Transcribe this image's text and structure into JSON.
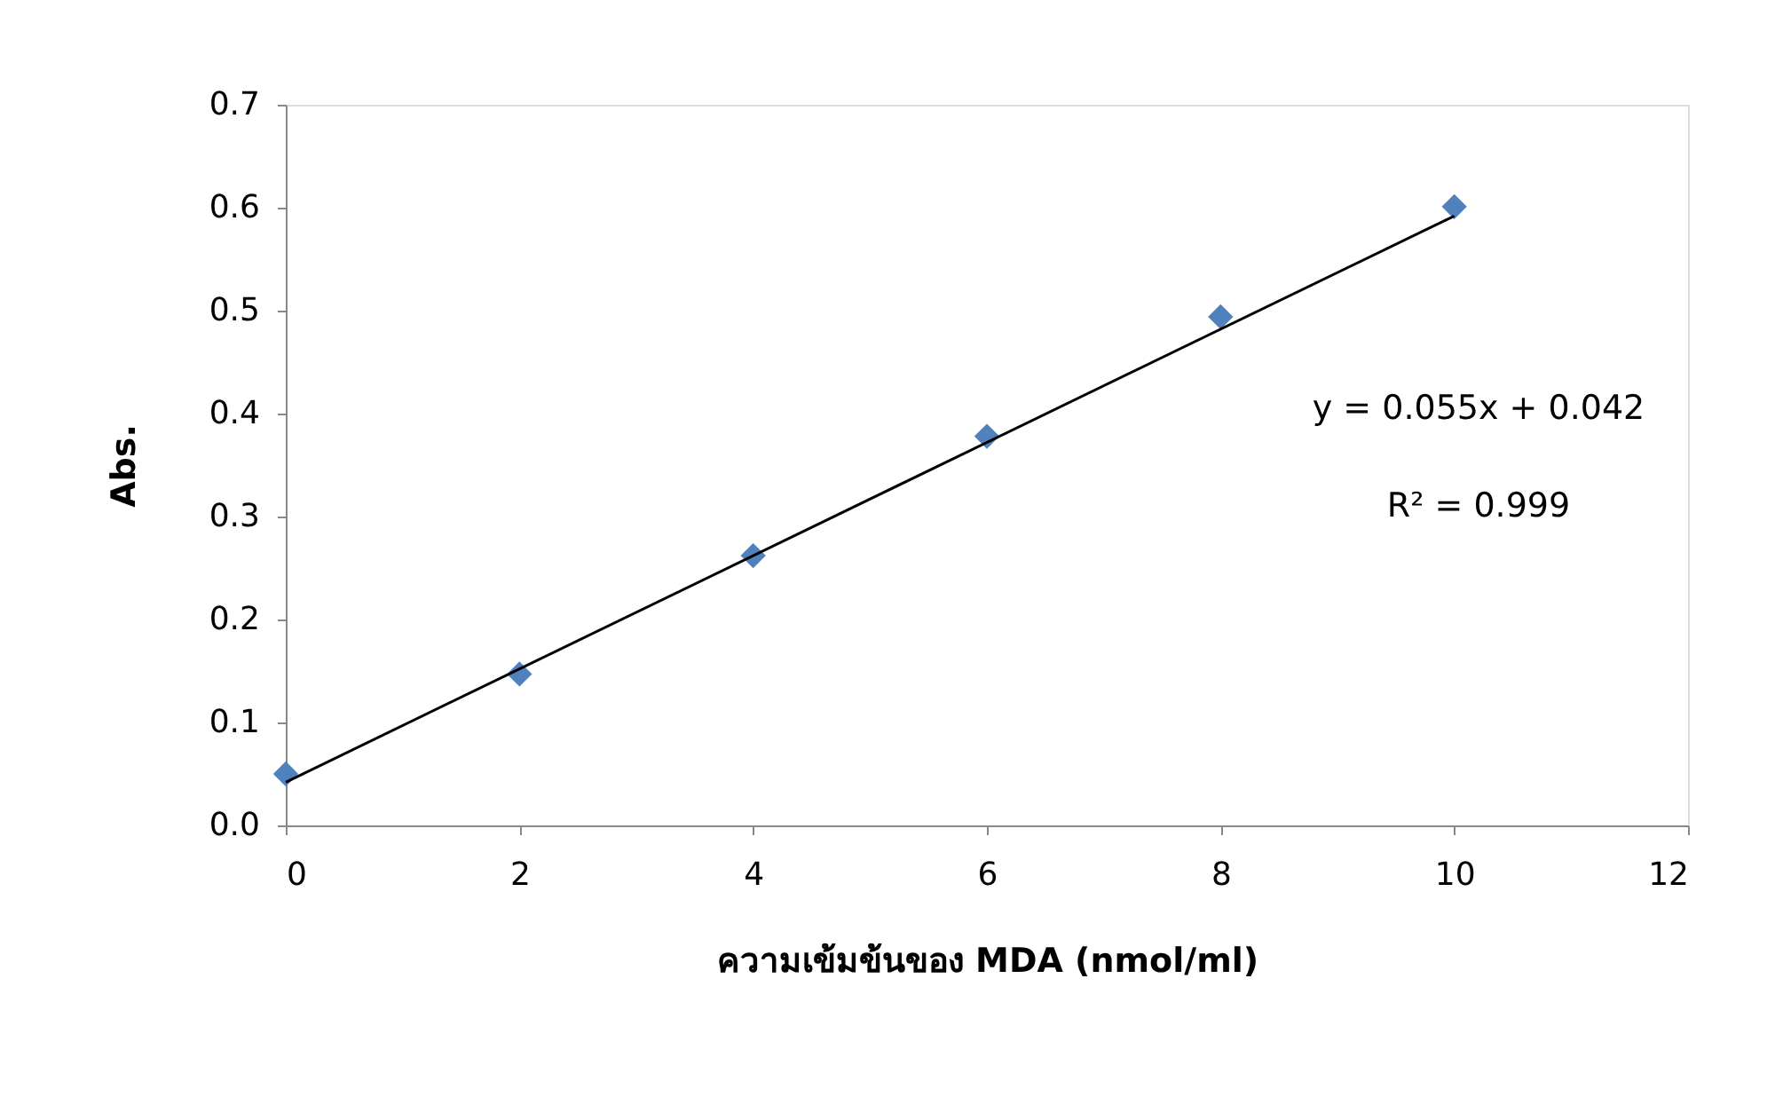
{
  "chart_data": {
    "type": "scatter",
    "xlabel": "ความเข้มข้นของ MDA (nmol/ml)",
    "ylabel": "Abs.",
    "xlim": [
      0,
      12
    ],
    "xticks": [
      0,
      2,
      4,
      6,
      8,
      10,
      12
    ],
    "ylim": [
      0,
      0.7
    ],
    "yticks": [
      {
        "value": 0,
        "label": "0.0"
      },
      0.1,
      0.2,
      0.3,
      0.4,
      0.5,
      0.6,
      0.7
    ],
    "grid": false,
    "marker": "diamond",
    "series": [
      {
        "color": "#4f81bd",
        "x": [
          0,
          2,
          4,
          6,
          8,
          10
        ],
        "values": [
          0.05,
          0.147,
          0.262,
          0.378,
          0.494,
          0.601
        ]
      },
      {
        "type": "line",
        "color": "#000000",
        "marker": "none",
        "line_style": "solid",
        "x": [
          0,
          10
        ],
        "values": [
          0.042,
          0.592
        ]
      }
    ],
    "annotations": [
      "y = 0.055x + 0.042",
      "R² = 0.999"
    ]
  }
}
